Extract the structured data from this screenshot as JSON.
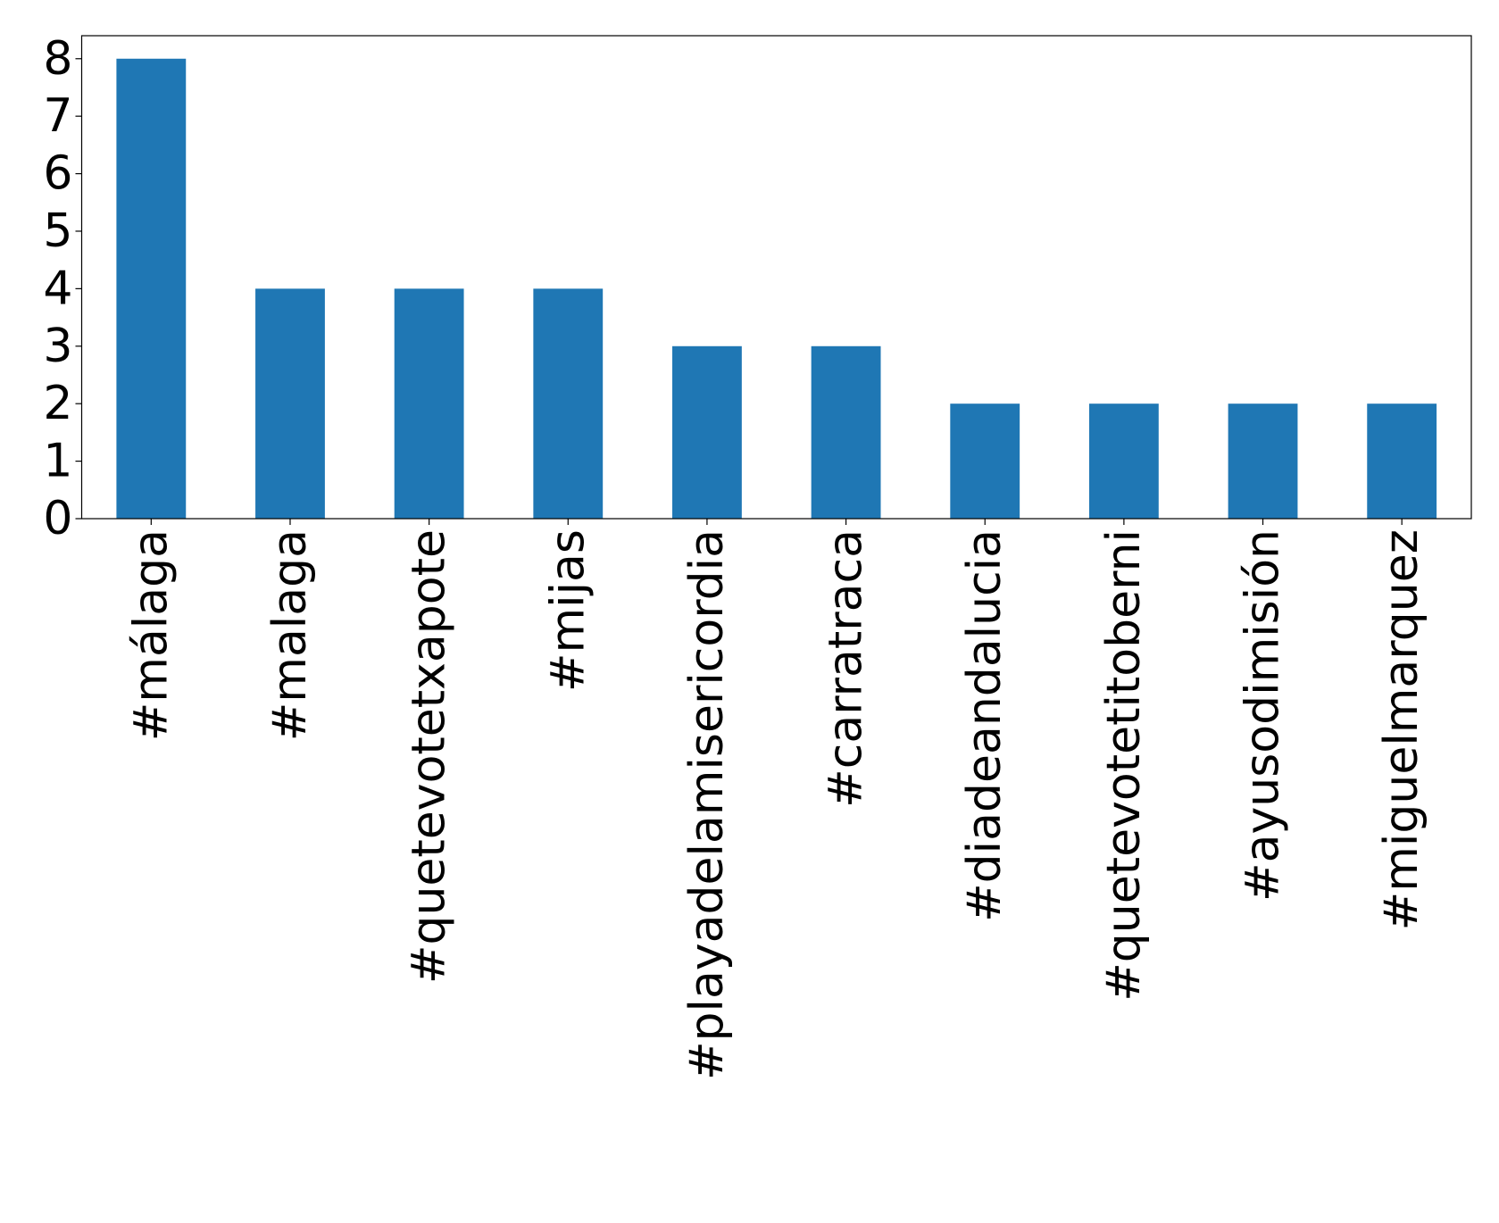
{
  "chart_data": {
    "type": "bar",
    "categories": [
      "#málaga",
      "#malaga",
      "#quetevotetxapote",
      "#mijas",
      "#playadelamisericordia",
      "#carratraca",
      "#diadeandalucia",
      "#quetevotetitoberni",
      "#ayusodimisión",
      "#miguelmarquez"
    ],
    "values": [
      8,
      4,
      4,
      4,
      3,
      3,
      2,
      2,
      2,
      2
    ],
    "color": "#1f77b4",
    "ylim": [
      0,
      8.4
    ],
    "yticks": [
      0,
      1,
      2,
      3,
      4,
      5,
      6,
      7,
      8
    ],
    "grid": false
  }
}
